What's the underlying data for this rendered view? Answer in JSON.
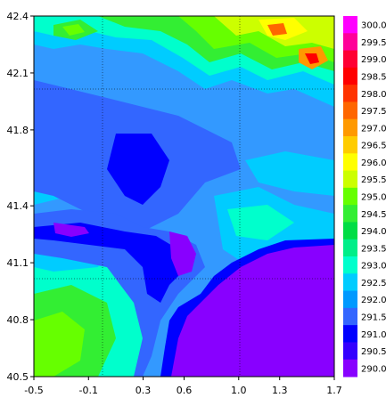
{
  "chart_data": {
    "type": "heatmap",
    "title": "",
    "xlabel": "",
    "ylabel": "",
    "xlim": [
      -0.5,
      1.7
    ],
    "ylim": [
      40.5,
      42.4
    ],
    "x_ticks": [
      "-0.5",
      "-0.1",
      "0.3",
      "0.6",
      "1.0",
      "1.3",
      "1.7"
    ],
    "x_tick_values": [
      -0.5,
      -0.1,
      0.3,
      0.6,
      1.0,
      1.3,
      1.7
    ],
    "y_ticks": [
      "42.4",
      "42.1",
      "41.8",
      "41.4",
      "41.1",
      "40.8",
      "40.5"
    ],
    "y_tick_values": [
      42.4,
      42.1,
      41.8,
      41.4,
      41.1,
      40.8,
      40.5
    ],
    "grid": true,
    "grid_style": "dotted",
    "colorbar": {
      "labels": [
        "300.0",
        "299.5",
        "299.0",
        "298.5",
        "298.0",
        "297.5",
        "297.0",
        "296.5",
        "296.0",
        "295.5",
        "295.0",
        "294.5",
        "294.0",
        "293.5",
        "293.0",
        "292.5",
        "292.0",
        "291.5",
        "291.0",
        "290.5",
        "290.0"
      ],
      "colors": [
        "#ff00ff",
        "#ff0099",
        "#ff0033",
        "#ff0000",
        "#ff3300",
        "#ff6600",
        "#ff9900",
        "#ffcc00",
        "#ffff00",
        "#ccff00",
        "#66ff00",
        "#33ee33",
        "#00dd44",
        "#00ee88",
        "#00ffcc",
        "#00ccff",
        "#0099ff",
        "#3366ff",
        "#0000ff",
        "#3300ff",
        "#8800ff"
      ]
    }
  }
}
